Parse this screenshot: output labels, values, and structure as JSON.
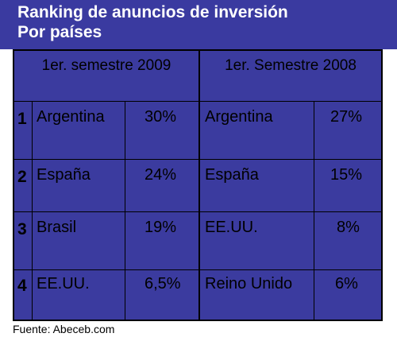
{
  "title": {
    "line1": "Ranking de anuncios de inversión",
    "line2": "Por países"
  },
  "chart_data": {
    "type": "table",
    "columns": [
      "1er. semestre 2009",
      "1er. Semestre 2008"
    ],
    "rows": [
      {
        "rank": "1",
        "country_2009": "Argentina",
        "value_2009": "30%",
        "country_2008": "Argentina",
        "value_2008": "27%"
      },
      {
        "rank": "2",
        "country_2009": "España",
        "value_2009": "24%",
        "country_2008": "España",
        "value_2008": "15%"
      },
      {
        "rank": "3",
        "country_2009": "Brasil",
        "value_2009": "19%",
        "country_2008": "EE.UU.",
        "value_2008": "8%"
      },
      {
        "rank": "4",
        "country_2009": "EE.UU.",
        "value_2009": "6,5%",
        "country_2008": "Reino Unido",
        "value_2008": "6%"
      }
    ]
  },
  "source": "Fuente: Abeceb.com",
  "colors": {
    "background": "#3b3b9f",
    "title_text": "#ffffff",
    "cell_text": "#000000",
    "grid": "#000000"
  }
}
